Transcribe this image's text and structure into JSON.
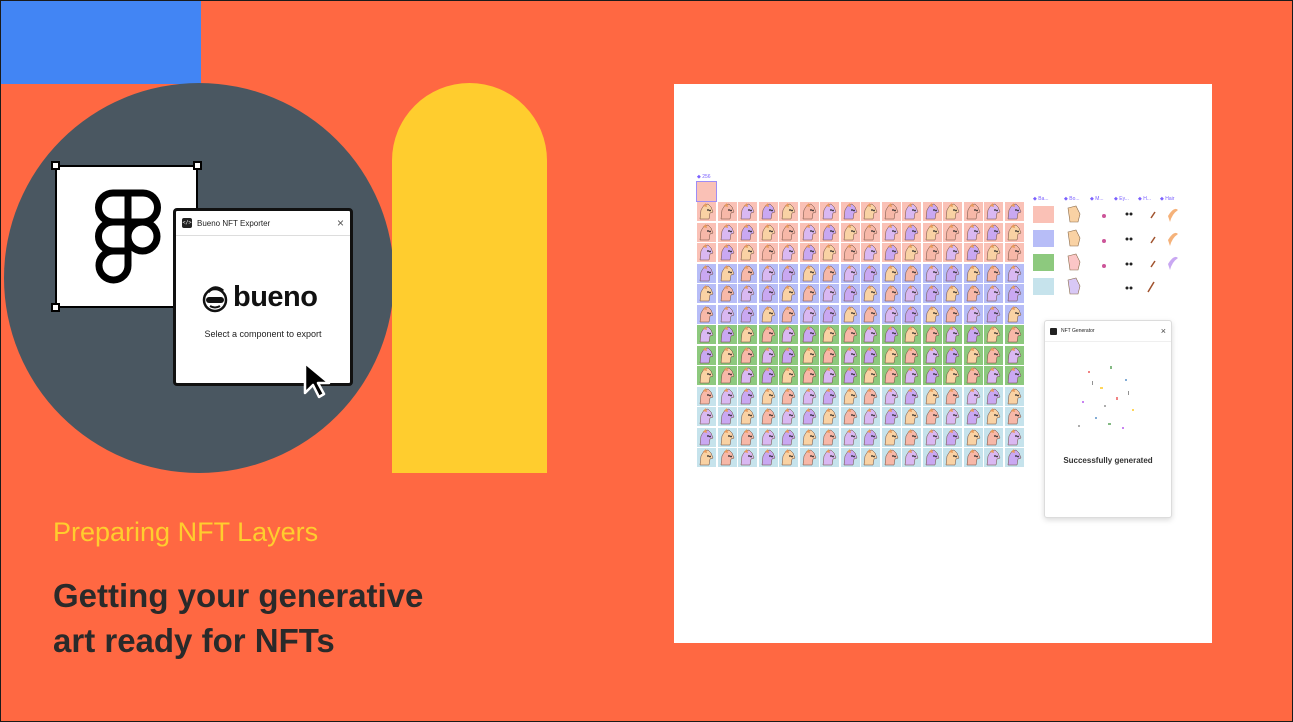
{
  "slide": {
    "subtitle": "Preparing NFT Layers",
    "headline": "Getting your generative\nart ready for NFTs",
    "colors": {
      "background": "#FF6842",
      "blue": "#4285F4",
      "circle": "#4A5761",
      "yellow": "#FFCD2E",
      "headline": "#2A2A2A"
    }
  },
  "plugin_window": {
    "title": "Bueno NFT Exporter",
    "icon_glyph": "</>",
    "close_glyph": "×",
    "brand": "bueno",
    "message": "Select a component to export"
  },
  "screenshot": {
    "component_count_label": "◆ 256",
    "variant_columns": [
      "◆ Ba...",
      "◆ Bo...",
      "◆ M...",
      "◆ Ey...",
      "◆ H...",
      "◆ Hair"
    ],
    "grid_row_colors": [
      "#FAC1B6",
      "#FAC1B6",
      "#FAC1B6",
      "#B7BDF7",
      "#B7BDF7",
      "#B7BDF7",
      "#8DC97E",
      "#8DC97E",
      "#8DC97E",
      "#C6E3EC",
      "#C6E3EC",
      "#C6E3EC",
      "#C6E3EC"
    ],
    "background_swatches": [
      "#FAC1B6",
      "#B7BDF7",
      "#8DC97E",
      "#C6E3EC"
    ],
    "generator_window": {
      "title": "NFT Generator",
      "close_glyph": "×",
      "status": "Successfully generated"
    }
  }
}
